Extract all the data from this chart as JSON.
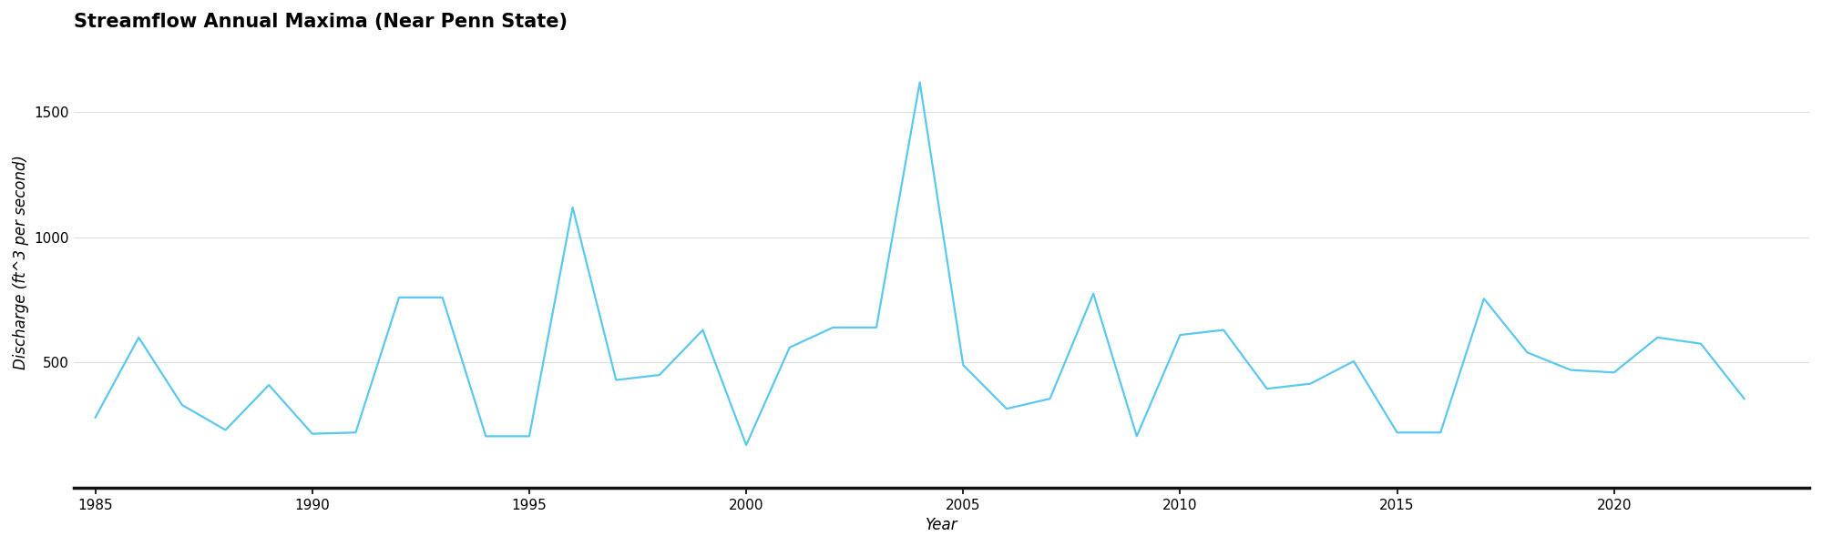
{
  "title": "Streamflow Annual Maxima (Near Penn State)",
  "xlabel": "Year",
  "ylabel": "Discharge (ft^3 per second)",
  "line_color": "#5bc8f0",
  "line_width": 1.6,
  "background_color": "#ffffff",
  "title_fontsize": 15,
  "title_fontweight": "bold",
  "label_fontsize": 12,
  "years": [
    1985,
    1986,
    1987,
    1988,
    1989,
    1990,
    1991,
    1992,
    1993,
    1994,
    1995,
    1996,
    1997,
    1998,
    1999,
    2000,
    2001,
    2002,
    2003,
    2004,
    2005,
    2006,
    2007,
    2008,
    2009,
    2010,
    2011,
    2012,
    2013,
    2014,
    2015,
    2016,
    2017,
    2018,
    2019,
    2020,
    2021,
    2022,
    2023
  ],
  "discharge": [
    280,
    600,
    330,
    230,
    410,
    215,
    220,
    760,
    760,
    205,
    205,
    1120,
    430,
    450,
    630,
    170,
    560,
    640,
    640,
    1620,
    490,
    315,
    355,
    775,
    205,
    610,
    630,
    395,
    415,
    505,
    220,
    220,
    755,
    540,
    470,
    460,
    600,
    575,
    355
  ],
  "ylim": [
    0,
    1800
  ],
  "xlim": [
    1984.5,
    2024.5
  ],
  "yticks": [
    500,
    1000,
    1500
  ],
  "xticks": [
    1985,
    1990,
    1995,
    2000,
    2005,
    2010,
    2015,
    2020
  ],
  "bottom_spine_color": "#111111",
  "bottom_spine_linewidth": 2.5,
  "tick_fontsize": 11,
  "figsize": [
    20.0,
    6.0
  ],
  "dpi": 100
}
